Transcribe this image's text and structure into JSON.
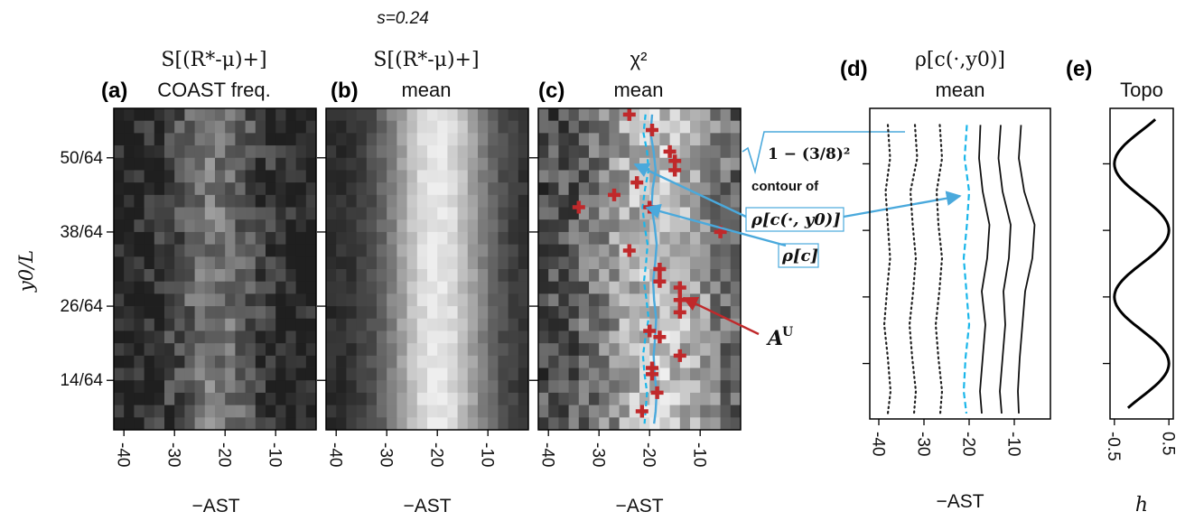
{
  "figure": {
    "top_label": "s=0.24",
    "y_axis_label": "y0/L",
    "colors": {
      "blue": "#4aa9dc",
      "dashed_blue": "#1ab6ea",
      "red": "#c0292b"
    }
  },
  "chart_data": [
    {
      "panel": "(a)",
      "type": "heatmap",
      "title_line1": "S[(R*-μ)+]",
      "title_line2": "COAST freq.",
      "xlabel": "−AST",
      "ylabel": "y0/L",
      "xlim": [
        -42,
        -2
      ],
      "ylim": [
        6,
        58
      ],
      "xticks": [
        "-40",
        "-30",
        "-20",
        "-10"
      ],
      "yticks": [
        "50/64",
        "38/64",
        "26/64",
        "14/64"
      ],
      "ytick_values": [
        50,
        38,
        26,
        14
      ],
      "grid_cols": 20,
      "grid_rows": 26,
      "value_profile": {
        "center": -22,
        "width": 9,
        "peak": 0.45,
        "base": 0.06,
        "noise": 0.35
      }
    },
    {
      "panel": "(b)",
      "type": "heatmap",
      "title_line1": "S[(R*-μ)+]",
      "title_line2": "mean",
      "xlabel": "−AST",
      "xlim": [
        -42,
        -2
      ],
      "ylim": [
        6,
        58
      ],
      "xticks": [
        "-40",
        "-30",
        "-20",
        "-10"
      ],
      "grid_cols": 20,
      "grid_rows": 26,
      "value_profile": {
        "center": -20,
        "width": 10,
        "peak": 0.95,
        "base": 0.1,
        "noise": 0.12
      }
    },
    {
      "panel": "(c)",
      "type": "heatmap",
      "title_line1": "χ²",
      "title_line2": "mean",
      "xlabel": "−AST",
      "xlim": [
        -42,
        -2
      ],
      "ylim": [
        6,
        58
      ],
      "xticks": [
        "-40",
        "-30",
        "-20",
        "-10"
      ],
      "grid_cols": 20,
      "grid_rows": 26,
      "value_profile": {
        "center": -18,
        "width": 12,
        "peak": 0.8,
        "base": 0.25,
        "noise": 0.45
      },
      "rho_c_contour": {
        "x": [
          -19.5,
          -19.8,
          -19.2,
          -18.8,
          -19.4,
          -19.6,
          -19.0,
          -18.6,
          -18.9,
          -19.3,
          -19.1,
          -18.7,
          -18.9,
          -19.2,
          -19.0,
          -18.6,
          -18.8,
          -19.1
        ],
        "y": [
          57,
          54,
          51,
          48,
          45,
          42,
          39,
          36,
          33,
          30,
          27,
          24,
          21,
          18,
          15,
          12,
          9,
          7
        ]
      },
      "rho_c_y0_contour": {
        "x": [
          -20.8,
          -21.2,
          -20.5,
          -20.2,
          -20.9,
          -21.4,
          -21.0,
          -20.4,
          -20.7,
          -21.1,
          -20.6,
          -20.2,
          -20.8,
          -21.3,
          -21.0,
          -20.5,
          -20.8,
          -21.0
        ],
        "y": [
          57,
          54,
          51,
          48,
          45,
          42,
          39,
          36,
          33,
          30,
          27,
          24,
          21,
          18,
          15,
          12,
          9,
          7
        ]
      },
      "AU_markers": {
        "x": [
          -24,
          -19.5,
          -16,
          -15,
          -15,
          -22.5,
          -27,
          -34,
          -20,
          -6,
          -24,
          -18,
          -18,
          -14,
          -14,
          -14,
          -20,
          -18,
          -14,
          -19.5,
          -19.5,
          -18.5,
          -21.5
        ],
        "y": [
          57,
          54.5,
          51,
          49.5,
          48,
          46,
          44,
          42,
          42,
          38,
          35,
          32,
          30,
          29,
          27,
          25,
          22,
          21,
          18,
          16,
          15,
          12,
          9
        ]
      }
    },
    {
      "panel": "(d)",
      "type": "line",
      "title_line1": "ρ[c(·,y0)]",
      "title_line2": "mean",
      "xlabel": "−AST",
      "xlim": [
        -42,
        -2
      ],
      "ylim": [
        4,
        60
      ],
      "xticks": [
        "-40",
        "-30",
        "-20",
        "-10"
      ],
      "series": [
        {
          "style": "dotted",
          "x": [
            -38,
            -37.5,
            -38.5,
            -38,
            -37.5,
            -38.2,
            -38.8,
            -38,
            -37.4,
            -38
          ],
          "y": [
            57,
            51,
            45,
            39,
            33,
            27,
            21,
            15,
            9,
            5
          ]
        },
        {
          "style": "dotted",
          "x": [
            -32,
            -31.5,
            -33,
            -32.5,
            -31.8,
            -32.4,
            -33.2,
            -32.6,
            -31.8,
            -32.2
          ],
          "y": [
            57,
            51,
            45,
            39,
            33,
            27,
            21,
            15,
            9,
            5
          ]
        },
        {
          "style": "dotted",
          "x": [
            -26.5,
            -26,
            -27.2,
            -26.8,
            -26,
            -26.6,
            -27.4,
            -26.8,
            -26,
            -26.4
          ],
          "y": [
            57,
            51,
            45,
            39,
            33,
            27,
            21,
            15,
            9,
            5
          ]
        },
        {
          "style": "dashed",
          "x": [
            -20.5,
            -21,
            -20,
            -20.5,
            -21.2,
            -20.6,
            -20,
            -20.8,
            -21.2,
            -20.6
          ],
          "y": [
            57,
            51,
            45,
            39,
            33,
            27,
            21,
            15,
            9,
            5
          ]
        },
        {
          "style": "solid",
          "x": [
            -17.5,
            -17.8,
            -17,
            -15.5,
            -16,
            -17.2,
            -16.4,
            -17,
            -17.6,
            -17.2
          ],
          "y": [
            57,
            51,
            45,
            39,
            33,
            27,
            21,
            15,
            9,
            5
          ]
        },
        {
          "style": "solid",
          "x": [
            -13,
            -13.5,
            -12.6,
            -10.8,
            -11.2,
            -12.4,
            -12,
            -12.6,
            -13.2,
            -12.8
          ],
          "y": [
            57,
            51,
            45,
            39,
            33,
            27,
            21,
            15,
            9,
            5
          ]
        },
        {
          "style": "solid",
          "x": [
            -8.5,
            -9,
            -7.8,
            -5.5,
            -6,
            -7.6,
            -8.2,
            -8.8,
            -9.2,
            -9
          ],
          "y": [
            57,
            51,
            45,
            39,
            33,
            27,
            21,
            15,
            9,
            5
          ]
        }
      ]
    },
    {
      "panel": "(e)",
      "type": "line",
      "title_line1": "Topo",
      "xlabel": "h",
      "xlim": [
        -0.58,
        0.58
      ],
      "ylim": [
        4,
        60
      ],
      "xticks": [
        "-0.5",
        "0.5"
      ],
      "xtick_values": [
        -0.5,
        0.5
      ],
      "series": [
        {
          "style": "solid",
          "formula": "h = 0.5*cos(2*pi*(y-38)/24)",
          "y_range": [
            6,
            58
          ]
        }
      ]
    }
  ],
  "annotations": {
    "contour_of_sqrt": "1 − (3/8)²",
    "contour_of_text": "contour of",
    "rho_c_y0_label": "ρ[c(·, y0)]",
    "rho_c_label": "ρ[c]",
    "au_label": "A",
    "au_sup": "U"
  }
}
